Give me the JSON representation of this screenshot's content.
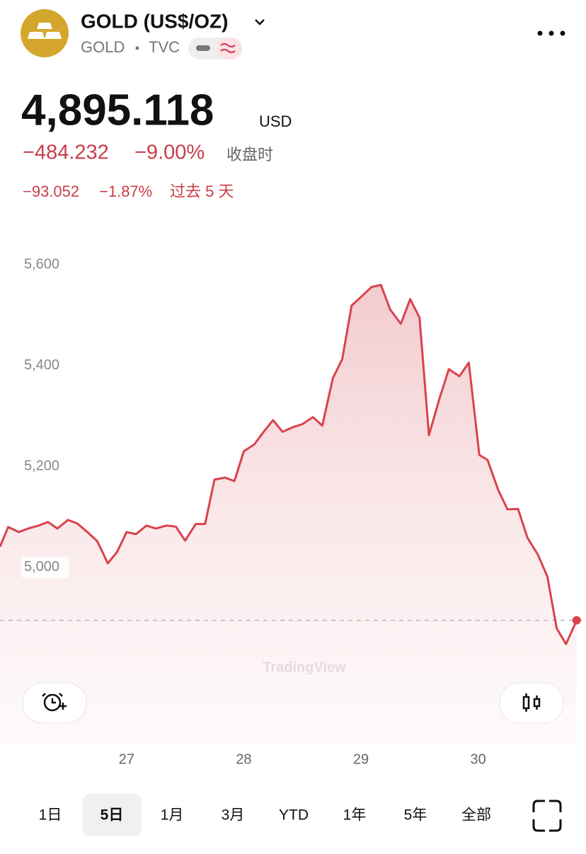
{
  "header": {
    "title": "GOLD (US$/OZ)",
    "symbol": "GOLD",
    "exchange": "TVC",
    "price": "4,895.118",
    "currency": "USD",
    "change": "−484.232",
    "change_percent": "−9.00%",
    "change_note": "收盘时",
    "change_5d": "−93.052",
    "change_5d_percent": "−1.87%",
    "change_5d_note": "过去 5 天"
  },
  "chart_data": {
    "type": "line",
    "watermark": "TradingView",
    "series": [
      {
        "color": "#d9434c",
        "x": [
          25.92,
          25.99,
          26.08,
          26.16,
          26.25,
          26.33,
          26.41,
          26.5,
          26.58,
          26.67,
          26.75,
          26.84,
          26.92,
          27.0,
          27.08,
          27.17,
          27.25,
          27.34,
          27.42,
          27.5,
          27.59,
          27.67,
          27.75,
          27.84,
          27.92,
          28.0,
          28.09,
          28.17,
          28.25,
          28.33,
          28.42,
          28.5,
          28.59,
          28.67,
          28.76,
          28.84,
          28.92,
          29.0,
          29.09,
          29.17,
          29.25,
          29.34,
          29.42,
          29.5,
          29.58,
          29.67,
          29.75,
          29.84,
          29.92,
          30.01,
          30.08,
          30.17,
          30.25,
          30.34,
          30.42,
          30.51,
          30.59,
          30.67,
          30.75,
          30.84
        ],
        "values": [
          5041,
          5080,
          5070,
          5077,
          5083,
          5090,
          5077,
          5094,
          5087,
          5069,
          5052,
          5008,
          5031,
          5070,
          5066,
          5083,
          5077,
          5083,
          5081,
          5053,
          5086,
          5086,
          5174,
          5178,
          5171,
          5230,
          5244,
          5269,
          5292,
          5269,
          5278,
          5284,
          5298,
          5281,
          5375,
          5413,
          5519,
          5536,
          5556,
          5560,
          5511,
          5483,
          5532,
          5495,
          5262,
          5335,
          5393,
          5379,
          5406,
          5223,
          5213,
          5154,
          5115,
          5116,
          5059,
          5025,
          4982,
          4879,
          4848,
          4895.118
        ]
      }
    ],
    "xlim": [
      25.92,
      30.92
    ],
    "xticks": [
      27,
      28,
      29,
      30
    ],
    "ylim": [
      4652,
      5662
    ],
    "yticks": [
      {
        "value": 5000,
        "label": "5,000"
      },
      {
        "value": 5200,
        "label": "5,200"
      },
      {
        "value": 5400,
        "label": "5,400"
      },
      {
        "value": 5600,
        "label": "5,600"
      }
    ]
  },
  "ranges": [
    "1日",
    "5日",
    "1月",
    "3月",
    "YTD",
    "1年",
    "5年",
    "全部"
  ]
}
